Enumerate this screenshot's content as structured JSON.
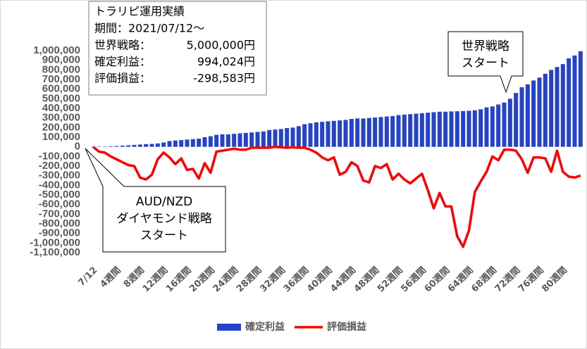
{
  "chart_data": {
    "type": "bar-line",
    "summary_title": "トラリピ運用実績",
    "summary_period": "期間：2021/07/12～",
    "summary_rows": [
      {
        "label": "世界戦略：",
        "value": "5,000,000円"
      },
      {
        "label": "確定利益：",
        "value": "994,024円"
      },
      {
        "label": "評価損益：",
        "value": "-298,583円"
      }
    ],
    "callout_world": [
      "世界戦略",
      "スタート"
    ],
    "callout_diamond": [
      "AUD/NZD",
      "ダイヤモンド戦略",
      "スタート"
    ],
    "categories": [
      "7/12",
      null,
      null,
      null,
      "4週間",
      null,
      null,
      null,
      "8週間",
      null,
      null,
      null,
      "12週間",
      null,
      null,
      null,
      "16週間",
      null,
      null,
      null,
      "20週間",
      null,
      null,
      null,
      "24週間",
      null,
      null,
      null,
      "28週間",
      null,
      null,
      null,
      "32週間",
      null,
      null,
      null,
      "36週間",
      null,
      null,
      null,
      "40週間",
      null,
      null,
      null,
      "44週間",
      null,
      null,
      null,
      "48週間",
      null,
      null,
      null,
      "52週間",
      null,
      null,
      null,
      "56週間",
      null,
      null,
      null,
      "60週間",
      null,
      null,
      null,
      "64週間",
      null,
      null,
      null,
      "68週間",
      null,
      null,
      null,
      "72週間",
      null,
      null,
      null,
      "76週間",
      null,
      null,
      null,
      "80週間",
      null,
      null,
      null
    ],
    "series": [
      {
        "name": "確定利益",
        "kind": "bar",
        "color": "#2443c8",
        "values": [
          0,
          2000,
          4000,
          6000,
          8000,
          12000,
          16000,
          20000,
          24000,
          28000,
          30000,
          35000,
          45000,
          60000,
          65000,
          70000,
          75000,
          80000,
          85000,
          100000,
          110000,
          125000,
          130000,
          130000,
          135000,
          140000,
          145000,
          150000,
          155000,
          160000,
          175000,
          180000,
          185000,
          195000,
          200000,
          215000,
          235000,
          245000,
          255000,
          260000,
          265000,
          270000,
          275000,
          280000,
          290000,
          295000,
          295000,
          300000,
          305000,
          310000,
          315000,
          320000,
          330000,
          335000,
          340000,
          345000,
          350000,
          355000,
          360000,
          365000,
          365000,
          368000,
          370000,
          372000,
          375000,
          380000,
          390000,
          410000,
          420000,
          440000,
          460000,
          500000,
          560000,
          620000,
          650000,
          690000,
          720000,
          760000,
          800000,
          830000,
          860000,
          920000,
          950000,
          994024
        ]
      },
      {
        "name": "評価損益",
        "kind": "line",
        "color": "#ff0000",
        "values": [
          0,
          -50000,
          -60000,
          -100000,
          -130000,
          -160000,
          -190000,
          -200000,
          -320000,
          -340000,
          -290000,
          -130000,
          -60000,
          -110000,
          -180000,
          -120000,
          -240000,
          -230000,
          -330000,
          -170000,
          -270000,
          -50000,
          -40000,
          -30000,
          -20000,
          -30000,
          -30000,
          -10000,
          -10000,
          -10000,
          -10000,
          0,
          -5000,
          -10000,
          -5000,
          -10000,
          -10000,
          -30000,
          -60000,
          -110000,
          -140000,
          -110000,
          -290000,
          -260000,
          -160000,
          -200000,
          -350000,
          -370000,
          -200000,
          -220000,
          -180000,
          -340000,
          -280000,
          -340000,
          -380000,
          -330000,
          -280000,
          -450000,
          -640000,
          -480000,
          -620000,
          -620000,
          -930000,
          -1040000,
          -870000,
          -470000,
          -360000,
          -260000,
          -100000,
          -140000,
          -30000,
          -30000,
          -40000,
          -130000,
          -270000,
          -110000,
          -110000,
          -120000,
          -260000,
          -40000,
          -260000,
          -310000,
          -320000,
          -298583
        ]
      }
    ],
    "ylim": [
      -1100000,
      1000000
    ],
    "yticks": [
      {
        "value": 1000000,
        "label": "1,000,000"
      },
      {
        "value": 900000,
        "label": "900,000"
      },
      {
        "value": 800000,
        "label": "800,000"
      },
      {
        "value": 700000,
        "label": "700,000"
      },
      {
        "value": 600000,
        "label": "600,000"
      },
      {
        "value": 500000,
        "label": "500,000"
      },
      {
        "value": 400000,
        "label": "400,000"
      },
      {
        "value": 300000,
        "label": "300,000"
      },
      {
        "value": 200000,
        "label": "200,000"
      },
      {
        "value": 100000,
        "label": "100,000"
      },
      0,
      {
        "value": -100000,
        "label": "-100,000"
      },
      {
        "value": -200000,
        "label": "-200,000"
      },
      {
        "value": -300000,
        "label": "-300,000"
      },
      {
        "value": -400000,
        "label": "-400,000"
      },
      {
        "value": -500000,
        "label": "-500,000"
      },
      {
        "value": -600000,
        "label": "-600,000"
      },
      {
        "value": -700000,
        "label": "-700,000"
      },
      {
        "value": -800000,
        "label": "-800,000"
      },
      {
        "value": -900000,
        "label": "-900,000"
      },
      {
        "value": -1000000,
        "label": "-1,000,000"
      },
      {
        "value": -1100000,
        "label": "-1,100,000"
      }
    ],
    "grid": false,
    "legend": "bottom"
  }
}
